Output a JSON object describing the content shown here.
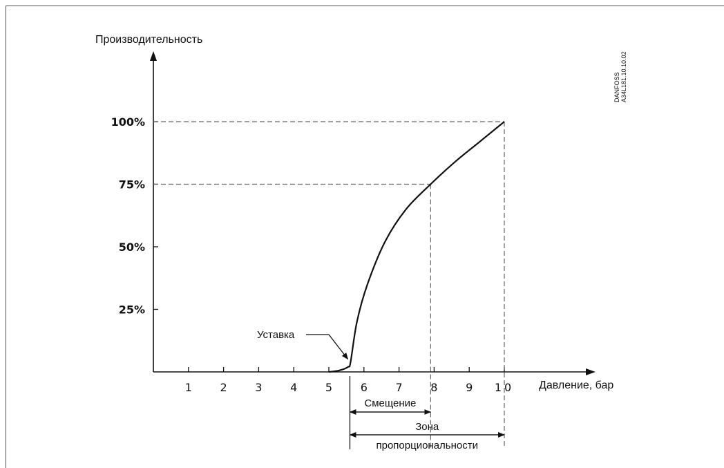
{
  "chart_data": {
    "type": "line",
    "ylabel": "Производительность",
    "xlabel": "Давление, бар",
    "x_ticks": [
      "1",
      "2",
      "3",
      "4",
      "5",
      "6",
      "7",
      "8",
      "9",
      "10"
    ],
    "y_ticks": [
      "25%",
      "50%",
      "75%",
      "100%"
    ],
    "xlim": [
      0,
      10
    ],
    "ylim": [
      0,
      100
    ],
    "grid": false,
    "series": [
      {
        "points": [
          {
            "x": 5.0,
            "y": 0
          },
          {
            "x": 5.3,
            "y": 0.6
          },
          {
            "x": 5.55,
            "y": 2.0
          },
          {
            "x": 5.62,
            "y": 4.0
          },
          {
            "x": 5.8,
            "y": 20
          },
          {
            "x": 6.1,
            "y": 35
          },
          {
            "x": 6.6,
            "y": 52
          },
          {
            "x": 7.2,
            "y": 65
          },
          {
            "x": 7.9,
            "y": 75
          },
          {
            "x": 8.6,
            "y": 84
          },
          {
            "x": 9.3,
            "y": 92
          },
          {
            "x": 10.0,
            "y": 100
          }
        ]
      }
    ],
    "reference_lines": [
      {
        "x": 10.0,
        "y": 100
      },
      {
        "x": 7.9,
        "y": 75
      }
    ],
    "annotations": {
      "setpoint": {
        "label": "Уставка",
        "x": 5.62,
        "y": 4.0
      },
      "offset": {
        "label": "Смещение",
        "from": 5.6,
        "to": 7.9
      },
      "prop_zone": {
        "label_line1": "Зона",
        "label_line2": "пропорциональности",
        "from": 5.6,
        "to": 10.0
      }
    },
    "code_text": [
      "DANFOSS",
      "A34L181.10.10.02"
    ]
  }
}
